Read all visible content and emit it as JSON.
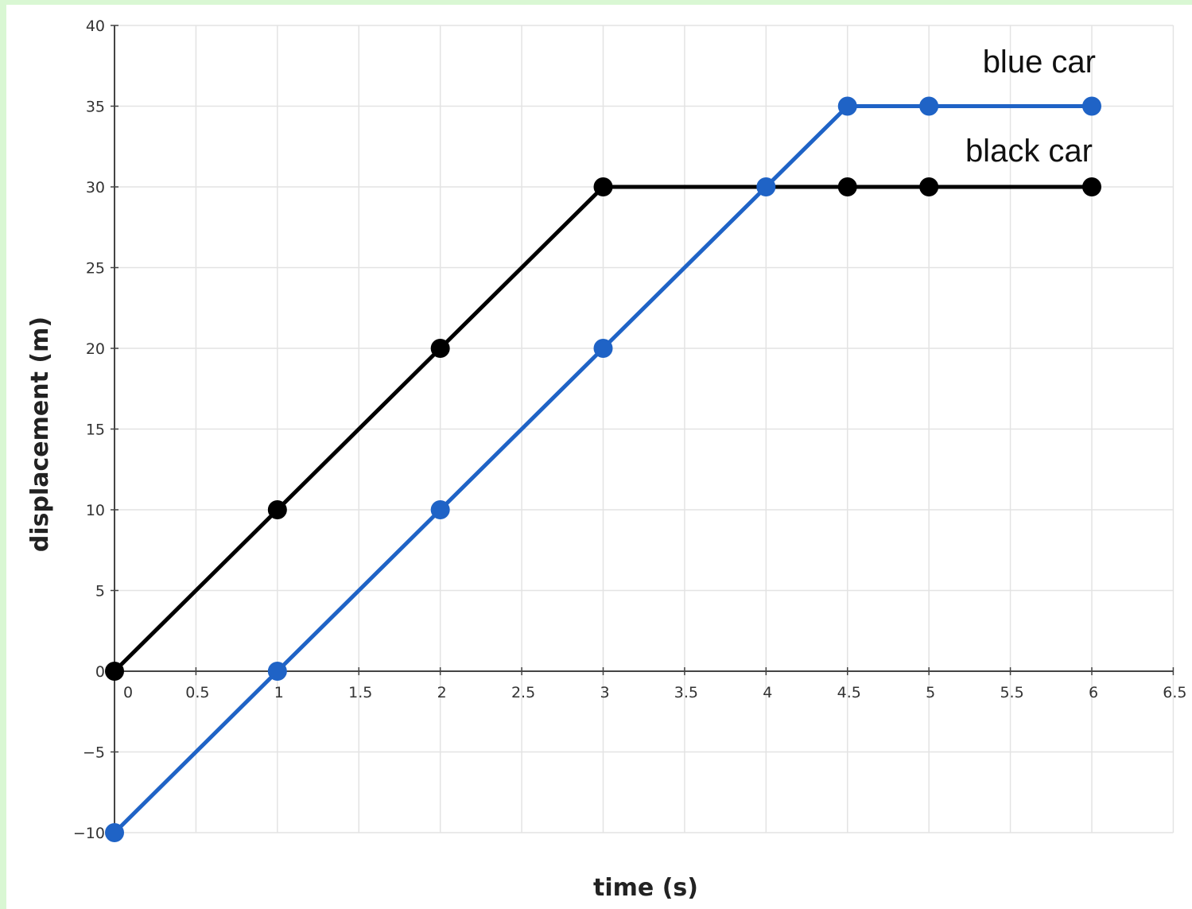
{
  "chart_data": {
    "type": "line",
    "title": "",
    "xlabel": "time (s)",
    "ylabel": "displacement (m)",
    "xlim": [
      0,
      6.5
    ],
    "ylim": [
      -10,
      40
    ],
    "x_ticks": [
      "0",
      "0.5",
      "1",
      "1.5",
      "2",
      "2.5",
      "3",
      "3.5",
      "4",
      "4.5",
      "5",
      "5.5",
      "6",
      "6.5"
    ],
    "y_ticks": [
      "40",
      "35",
      "30",
      "25",
      "20",
      "15",
      "10",
      "5",
      "0",
      "−5",
      "−10"
    ],
    "grid": true,
    "series": [
      {
        "name": "black car",
        "color": "#000000",
        "x": [
          0,
          1,
          2,
          3,
          4.5,
          5,
          6
        ],
        "y": [
          0,
          10,
          20,
          30,
          30,
          30,
          30
        ]
      },
      {
        "name": "blue car",
        "color": "#1f63c6",
        "x": [
          0,
          1,
          2,
          3,
          4,
          4.5,
          5,
          6
        ],
        "y": [
          -10,
          0,
          10,
          20,
          30,
          35,
          35,
          35
        ]
      }
    ]
  }
}
